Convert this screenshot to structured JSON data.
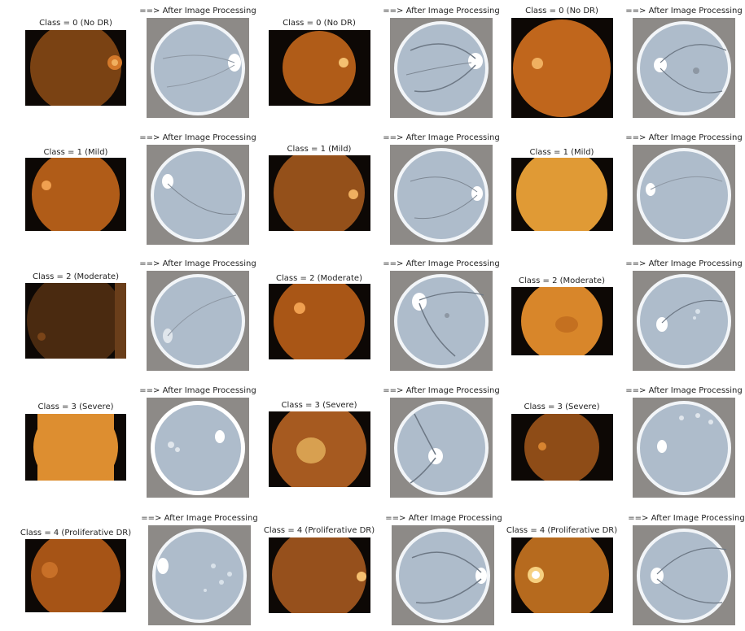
{
  "figure": {
    "grid": {
      "rows": 5,
      "pairs_per_row": 3
    },
    "processed_label": "==> After Image Processing",
    "rows": [
      {
        "class_label": "Class = 0 (No DR)"
      },
      {
        "class_label": "Class = 1 (Mild)"
      },
      {
        "class_label": "Class = 2 (Moderate)"
      },
      {
        "class_label": "Class = 3 (Severe)"
      },
      {
        "class_label": "Class = 4 (Proliferative DR)"
      }
    ],
    "colors": {
      "raw_background": "#0d0805",
      "processed_background": "#8d8a87",
      "processed_disc": "#aebccb",
      "processed_rim": "#f2f5f8",
      "fundus_variants": [
        "#8a4e1a",
        "#b8641d",
        "#c97a22",
        "#d9932b",
        "#7a3f12"
      ]
    }
  }
}
